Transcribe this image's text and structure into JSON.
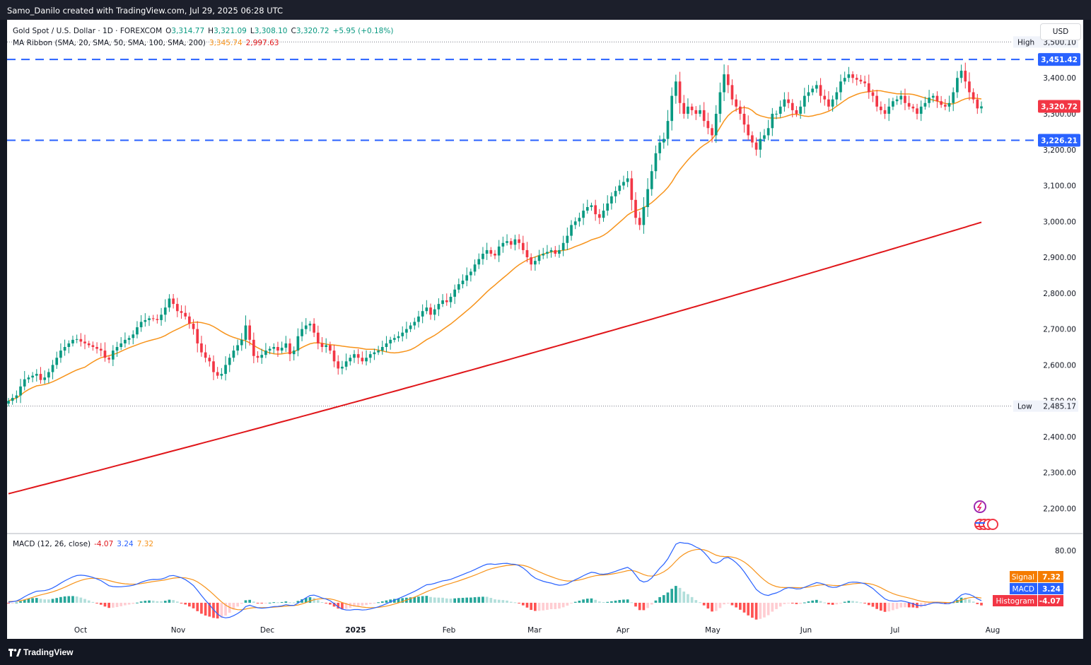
{
  "header": {
    "attribution": "Samo_Danilo created with TradingView.com, Jul 29, 2025 06:28 UTC"
  },
  "legend": {
    "symbol": "Gold Spot / U.S. Dollar · 1D · FOREXCOM",
    "open_label": "O",
    "open": "3,314.77",
    "high_label": "H",
    "high": "3,321.09",
    "low_label": "L",
    "low": "3,308.10",
    "close_label": "C",
    "close": "3,320.72",
    "change": "+5.95 (+0.18%)",
    "ma_label": "MA Ribbon (SMA, 20, SMA, 50, SMA, 100, SMA, 200)",
    "ma_fast": "3,345.74",
    "ma_slow": "2,997.63"
  },
  "currency_button": "USD",
  "macd_legend": {
    "label": "MACD (12, 26, close)",
    "hist": "-4.07",
    "macd": "3.24",
    "signal": "7.32"
  },
  "footer": {
    "brand": "TradingView"
  },
  "colors": {
    "up": "#089981",
    "down": "#f23645",
    "ma20": "#f7931a",
    "ma200": "#e0161a",
    "level": "#2962ff",
    "macd": "#2962ff",
    "signal": "#f7931a"
  },
  "chart_data": [
    {
      "type": "candlestick",
      "price_axis": {
        "ticks": [
          "3,400.00",
          "3,300.00",
          "3,200.00",
          "3,100.00",
          "3,000.00",
          "2,900.00",
          "2,800.00",
          "2,700.00",
          "2,600.00",
          "2,500.00",
          "2,400.00",
          "2,300.00",
          "2,200.00"
        ],
        "tick_values": [
          3400,
          3300,
          3200,
          3100,
          3000,
          2900,
          2800,
          2700,
          2600,
          2500,
          2400,
          2300,
          2200
        ],
        "range": [
          2130,
          3560
        ]
      },
      "time_axis": {
        "labels": [
          "Oct",
          "Nov",
          "Dec",
          "2025",
          "Feb",
          "Mar",
          "Apr",
          "May",
          "Jun",
          "Jul",
          "Aug"
        ]
      },
      "markers": [
        {
          "label": "High",
          "value_text": "3,500.10",
          "value": 3500.1
        },
        {
          "label": "Low",
          "value_text": "2,485.17",
          "value": 2485.17
        }
      ],
      "levels": [
        {
          "value_text": "3,451.42",
          "value": 3451.42
        },
        {
          "value_text": "3,226.21",
          "value": 3226.21
        }
      ],
      "last_price": {
        "value_text": "3,320.72",
        "value": 3320.72
      },
      "closes": [
        2500,
        2508,
        2515,
        2540,
        2560,
        2565,
        2570,
        2575,
        2558,
        2565,
        2580,
        2600,
        2620,
        2640,
        2650,
        2660,
        2670,
        2672,
        2665,
        2660,
        2655,
        2650,
        2645,
        2640,
        2620,
        2615,
        2640,
        2650,
        2660,
        2670,
        2675,
        2685,
        2705,
        2720,
        2725,
        2730,
        2728,
        2725,
        2740,
        2760,
        2785,
        2770,
        2750,
        2745,
        2735,
        2715,
        2700,
        2660,
        2635,
        2620,
        2610,
        2580,
        2570,
        2575,
        2600,
        2620,
        2640,
        2655,
        2670,
        2710,
        2670,
        2625,
        2620,
        2628,
        2640,
        2645,
        2650,
        2640,
        2648,
        2660,
        2630,
        2640,
        2680,
        2700,
        2710,
        2715,
        2690,
        2660,
        2650,
        2655,
        2640,
        2610,
        2590,
        2595,
        2610,
        2620,
        2630,
        2620,
        2610,
        2620,
        2630,
        2635,
        2640,
        2650,
        2660,
        2670,
        2675,
        2680,
        2690,
        2700,
        2710,
        2720,
        2735,
        2750,
        2760,
        2740,
        2755,
        2770,
        2780,
        2775,
        2790,
        2810,
        2825,
        2835,
        2850,
        2860,
        2880,
        2895,
        2910,
        2920,
        2910,
        2905,
        2930,
        2940,
        2945,
        2935,
        2950,
        2940,
        2920,
        2900,
        2880,
        2890,
        2905,
        2910,
        2915,
        2920,
        2910,
        2920,
        2940,
        2960,
        2990,
        3000,
        3010,
        3030,
        3040,
        3045,
        3020,
        3010,
        3030,
        3050,
        3070,
        3085,
        3100,
        3110,
        3120,
        3060,
        3010,
        2990,
        3040,
        3090,
        3140,
        3190,
        3220,
        3230,
        3280,
        3350,
        3390,
        3330,
        3300,
        3320,
        3310,
        3300,
        3310,
        3280,
        3260,
        3240,
        3300,
        3360,
        3410,
        3380,
        3340,
        3320,
        3300,
        3270,
        3240,
        3220,
        3200,
        3230,
        3240,
        3260,
        3300,
        3300,
        3320,
        3340,
        3330,
        3310,
        3300,
        3320,
        3350,
        3360,
        3370,
        3380,
        3350,
        3340,
        3320,
        3340,
        3360,
        3390,
        3400,
        3410,
        3400,
        3395,
        3390,
        3385,
        3360,
        3350,
        3320,
        3310,
        3300,
        3320,
        3335,
        3340,
        3350,
        3330,
        3320,
        3315,
        3300,
        3320,
        3330,
        3345,
        3350,
        3335,
        3325,
        3320,
        3330,
        3360,
        3400,
        3420,
        3390,
        3360,
        3340,
        3315,
        3320.72
      ],
      "ma20_last": 3345.74,
      "ma200_first": 2241,
      "ma200_last": 2997.63
    },
    {
      "type": "macd",
      "axis": {
        "ticks": [
          "80.00"
        ],
        "tick_values": [
          80
        ],
        "range": [
          -25,
          105
        ]
      },
      "labels": [
        {
          "name": "Signal",
          "value_text": "7.32"
        },
        {
          "name": "MACD",
          "value_text": "3.24"
        },
        {
          "name": "Histogram",
          "value_text": "-4.07"
        }
      ]
    }
  ]
}
